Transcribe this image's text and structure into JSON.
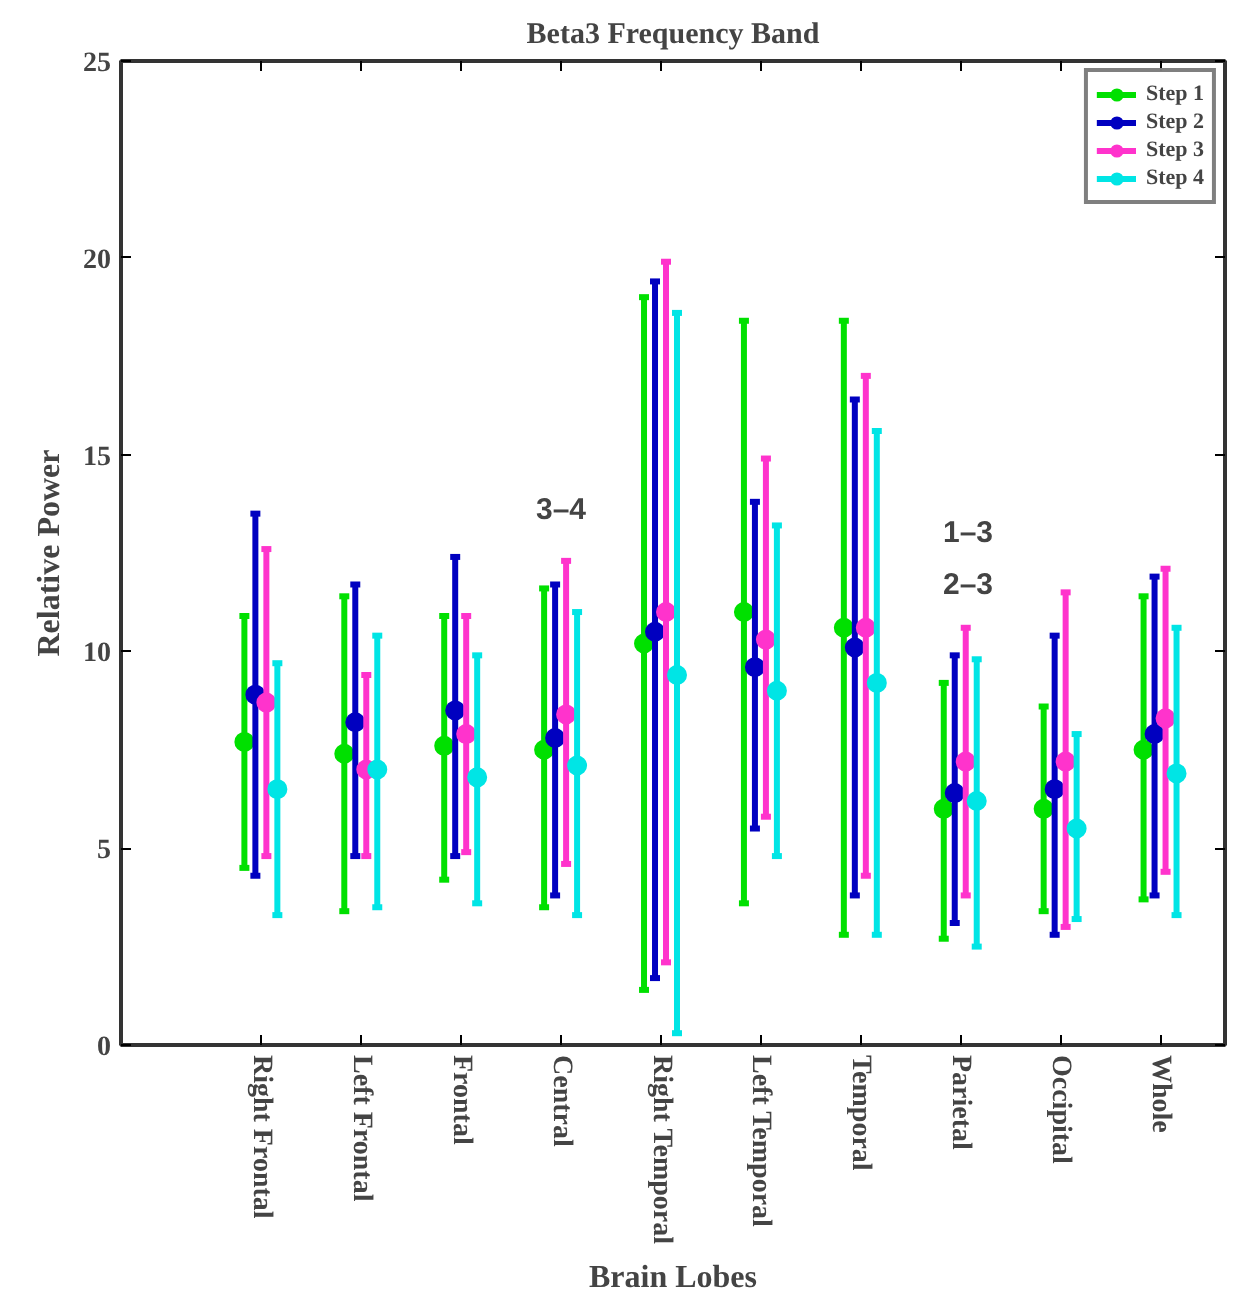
{
  "chart_data": {
    "type": "scatter",
    "title": "Beta3 Frequency Band",
    "xlabel": "Brain Lobes",
    "ylabel": "Relative Power",
    "categories": [
      "Right Frontal",
      "Left Frontal",
      "Frontal",
      "Central",
      "Right Temporal",
      "Left Temporal",
      "Temporal",
      "Parietal",
      "Occipital",
      "Whole"
    ],
    "series": [
      {
        "name": "Step 1",
        "color": "#00e000",
        "values": [
          7.7,
          7.4,
          7.6,
          7.5,
          10.2,
          11.0,
          10.6,
          6.0,
          6.0,
          7.5
        ],
        "errors": [
          [
            4.5,
            10.9
          ],
          [
            3.4,
            11.4
          ],
          [
            4.2,
            10.9
          ],
          [
            3.5,
            11.6
          ],
          [
            1.4,
            19.0
          ],
          [
            3.6,
            18.4
          ],
          [
            2.8,
            18.4
          ],
          [
            2.7,
            9.2
          ],
          [
            3.4,
            8.6
          ],
          [
            3.7,
            11.4
          ]
        ]
      },
      {
        "name": "Step 2",
        "color": "#0000c0",
        "values": [
          8.9,
          8.2,
          8.5,
          7.8,
          10.5,
          9.6,
          10.1,
          6.4,
          6.5,
          7.9
        ],
        "errors": [
          [
            4.3,
            13.5
          ],
          [
            4.8,
            11.7
          ],
          [
            4.8,
            12.4
          ],
          [
            3.8,
            11.7
          ],
          [
            1.7,
            19.4
          ],
          [
            5.5,
            13.8
          ],
          [
            3.8,
            16.4
          ],
          [
            3.1,
            9.9
          ],
          [
            2.8,
            10.4
          ],
          [
            3.8,
            11.9
          ]
        ]
      },
      {
        "name": "Step 3",
        "color": "#ff33cc",
        "values": [
          8.7,
          7.0,
          7.9,
          8.4,
          11.0,
          10.3,
          10.6,
          7.2,
          7.2,
          8.3
        ],
        "errors": [
          [
            4.8,
            12.6
          ],
          [
            4.8,
            9.4
          ],
          [
            4.9,
            10.9
          ],
          [
            4.6,
            12.3
          ],
          [
            2.1,
            19.9
          ],
          [
            5.8,
            14.9
          ],
          [
            4.3,
            17.0
          ],
          [
            3.8,
            10.6
          ],
          [
            3.0,
            11.5
          ],
          [
            4.4,
            12.1
          ]
        ]
      },
      {
        "name": "Step 4",
        "color": "#00e5e5",
        "values": [
          6.5,
          7.0,
          6.8,
          7.1,
          9.4,
          9.0,
          9.2,
          6.2,
          5.5,
          6.9
        ],
        "errors": [
          [
            3.3,
            9.7
          ],
          [
            3.5,
            10.4
          ],
          [
            3.6,
            9.9
          ],
          [
            3.3,
            11.0
          ],
          [
            0.3,
            18.6
          ],
          [
            4.8,
            13.2
          ],
          [
            2.8,
            15.6
          ],
          [
            2.5,
            9.8
          ],
          [
            3.2,
            7.9
          ],
          [
            3.3,
            10.6
          ]
        ]
      }
    ],
    "annotations": [
      "3–4",
      "1–3",
      "2–3"
    ],
    "ylim": [
      0,
      25
    ],
    "yticks": [
      0,
      5,
      10,
      15,
      20,
      25
    ],
    "grid": false,
    "legend": "top right",
    "marker": "circle"
  }
}
